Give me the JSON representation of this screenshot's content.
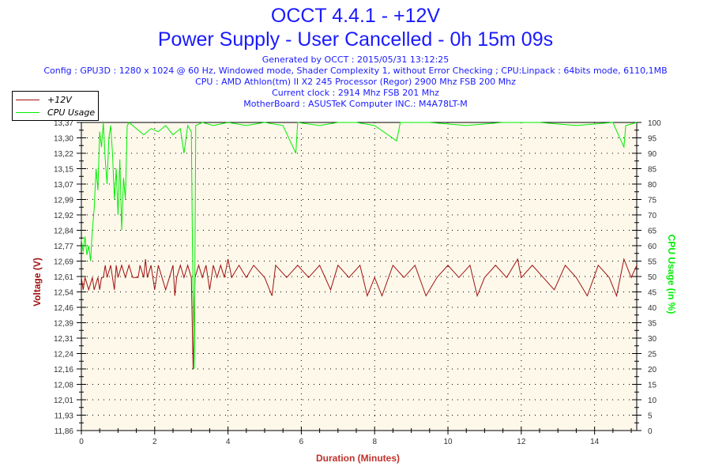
{
  "title": "OCCT 4.4.1 - +12V",
  "subtitle": "Power Supply - User Cancelled - 0h 15m 09s",
  "info": [
    "Generated by OCCT : 2015/05/31 13:12:25",
    "Config : GPU3D : 1280 x 1024 @ 60 Hz, Windowed mode, Shader Complexity 1, without Error Checking ; CPU:Linpack : 64bits mode, 6110,1MB",
    "CPU : AMD Athlon(tm) II X2 245 Processor (Regor) 2900 Mhz FSB 200 Mhz",
    "Current clock : 2914 Mhz FSB 201 Mhz",
    "MotherBoard : ASUSTeK Computer INC.: M4A78LT-M"
  ],
  "chart_data": {
    "type": "line",
    "xlabel": "Duration (Minutes)",
    "ylabel": "Voltage (V)",
    "y2label": "CPU Usage (in %)",
    "xlim": [
      0,
      15.15
    ],
    "ylim": [
      11.86,
      13.37
    ],
    "y2lim": [
      0,
      100
    ],
    "xticks": [
      "0",
      "2",
      "4",
      "6",
      "8",
      "10",
      "12",
      "14"
    ],
    "yticks": [
      "11,86",
      "11,93",
      "12,01",
      "12,08",
      "12,16",
      "12,24",
      "12,31",
      "12,39",
      "12,46",
      "12,54",
      "12,61",
      "12,69",
      "12,77",
      "12,84",
      "12,92",
      "12,99",
      "13,07",
      "13,15",
      "13,22",
      "13,30",
      "13,37"
    ],
    "y2ticks": [
      "0",
      "5",
      "10",
      "15",
      "20",
      "25",
      "30",
      "35",
      "40",
      "45",
      "50",
      "55",
      "60",
      "65",
      "70",
      "75",
      "80",
      "85",
      "90",
      "95",
      "100"
    ],
    "grid": true,
    "legend_position": "top-left",
    "background": "#fdf8ea",
    "series": [
      {
        "name": "+12V",
        "color": "#a01010",
        "axis": "left",
        "points": [
          [
            0,
            12.61
          ],
          [
            0.05,
            12.55
          ],
          [
            0.1,
            12.61
          ],
          [
            0.2,
            12.55
          ],
          [
            0.3,
            12.61
          ],
          [
            0.35,
            12.55
          ],
          [
            0.45,
            12.61
          ],
          [
            0.5,
            12.55
          ],
          [
            0.55,
            12.61
          ],
          [
            0.6,
            12.61
          ],
          [
            0.65,
            12.67
          ],
          [
            0.7,
            12.61
          ],
          [
            0.8,
            12.67
          ],
          [
            0.85,
            12.61
          ],
          [
            0.9,
            12.55
          ],
          [
            0.95,
            12.67
          ],
          [
            1.0,
            12.61
          ],
          [
            1.1,
            12.67
          ],
          [
            1.2,
            12.61
          ],
          [
            1.3,
            12.67
          ],
          [
            1.4,
            12.61
          ],
          [
            1.55,
            12.61
          ],
          [
            1.6,
            12.67
          ],
          [
            1.7,
            12.61
          ],
          [
            1.75,
            12.7
          ],
          [
            1.8,
            12.61
          ],
          [
            1.9,
            12.67
          ],
          [
            2.0,
            12.55
          ],
          [
            2.1,
            12.67
          ],
          [
            2.2,
            12.61
          ],
          [
            2.3,
            12.55
          ],
          [
            2.4,
            12.61
          ],
          [
            2.5,
            12.67
          ],
          [
            2.55,
            12.52
          ],
          [
            2.6,
            12.61
          ],
          [
            2.7,
            12.67
          ],
          [
            2.8,
            12.61
          ],
          [
            2.9,
            12.67
          ],
          [
            3.0,
            12.61
          ],
          [
            3.05,
            12.16
          ],
          [
            3.1,
            12.61
          ],
          [
            3.2,
            12.67
          ],
          [
            3.3,
            12.61
          ],
          [
            3.4,
            12.67
          ],
          [
            3.5,
            12.55
          ],
          [
            3.6,
            12.67
          ],
          [
            3.7,
            12.61
          ],
          [
            3.8,
            12.67
          ],
          [
            3.9,
            12.61
          ],
          [
            4.0,
            12.7
          ],
          [
            4.1,
            12.61
          ],
          [
            4.3,
            12.67
          ],
          [
            4.5,
            12.61
          ],
          [
            4.7,
            12.67
          ],
          [
            5.0,
            12.61
          ],
          [
            5.2,
            12.52
          ],
          [
            5.3,
            12.67
          ],
          [
            5.6,
            12.61
          ],
          [
            5.9,
            12.67
          ],
          [
            6.2,
            12.61
          ],
          [
            6.5,
            12.67
          ],
          [
            6.8,
            12.55
          ],
          [
            7.0,
            12.67
          ],
          [
            7.3,
            12.61
          ],
          [
            7.6,
            12.67
          ],
          [
            7.8,
            12.52
          ],
          [
            8.0,
            12.61
          ],
          [
            8.2,
            12.52
          ],
          [
            8.5,
            12.67
          ],
          [
            8.8,
            12.61
          ],
          [
            9.1,
            12.67
          ],
          [
            9.4,
            12.52
          ],
          [
            9.7,
            12.61
          ],
          [
            10.0,
            12.67
          ],
          [
            10.3,
            12.61
          ],
          [
            10.6,
            12.67
          ],
          [
            10.8,
            12.52
          ],
          [
            11.0,
            12.61
          ],
          [
            11.3,
            12.67
          ],
          [
            11.6,
            12.61
          ],
          [
            11.9,
            12.7
          ],
          [
            12.0,
            12.61
          ],
          [
            12.3,
            12.67
          ],
          [
            12.6,
            12.61
          ],
          [
            12.9,
            12.55
          ],
          [
            13.2,
            12.67
          ],
          [
            13.5,
            12.61
          ],
          [
            13.8,
            12.52
          ],
          [
            14.1,
            12.67
          ],
          [
            14.4,
            12.61
          ],
          [
            14.6,
            12.52
          ],
          [
            14.8,
            12.7
          ],
          [
            15.0,
            12.61
          ],
          [
            15.15,
            12.67
          ]
        ]
      },
      {
        "name": "CPU Usage",
        "color": "#00ee00",
        "axis": "right",
        "points": [
          [
            0,
            62
          ],
          [
            0.05,
            58
          ],
          [
            0.1,
            63
          ],
          [
            0.15,
            57
          ],
          [
            0.2,
            60
          ],
          [
            0.25,
            55
          ],
          [
            0.3,
            65
          ],
          [
            0.35,
            72
          ],
          [
            0.4,
            85
          ],
          [
            0.45,
            78
          ],
          [
            0.5,
            97
          ],
          [
            0.55,
            92
          ],
          [
            0.6,
            100
          ],
          [
            0.65,
            88
          ],
          [
            0.7,
            80
          ],
          [
            0.75,
            95
          ],
          [
            0.8,
            99
          ],
          [
            0.85,
            90
          ],
          [
            0.9,
            75
          ],
          [
            0.95,
            85
          ],
          [
            1.0,
            70
          ],
          [
            1.05,
            88
          ],
          [
            1.1,
            65
          ],
          [
            1.15,
            82
          ],
          [
            1.2,
            75
          ],
          [
            1.25,
            99
          ],
          [
            1.3,
            100
          ],
          [
            1.5,
            98
          ],
          [
            1.7,
            96
          ],
          [
            1.9,
            98
          ],
          [
            2.1,
            97
          ],
          [
            2.3,
            99
          ],
          [
            2.5,
            96
          ],
          [
            2.7,
            98
          ],
          [
            2.8,
            90
          ],
          [
            2.9,
            99
          ],
          [
            3.0,
            97
          ],
          [
            3.03,
            60
          ],
          [
            3.08,
            20
          ],
          [
            3.12,
            99
          ],
          [
            3.3,
            100
          ],
          [
            3.6,
            99
          ],
          [
            4.0,
            100
          ],
          [
            4.5,
            99
          ],
          [
            5.0,
            100
          ],
          [
            5.5,
            99
          ],
          [
            5.85,
            90
          ],
          [
            5.9,
            100
          ],
          [
            6.5,
            99
          ],
          [
            7.0,
            100
          ],
          [
            7.5,
            100
          ],
          [
            8.0,
            99
          ],
          [
            8.6,
            94
          ],
          [
            8.7,
            100
          ],
          [
            9.5,
            100
          ],
          [
            10.5,
            99
          ],
          [
            11.5,
            100
          ],
          [
            12.5,
            100
          ],
          [
            13.5,
            99
          ],
          [
            14.5,
            100
          ],
          [
            14.8,
            92
          ],
          [
            14.85,
            99
          ],
          [
            15.15,
            100
          ]
        ]
      }
    ]
  }
}
